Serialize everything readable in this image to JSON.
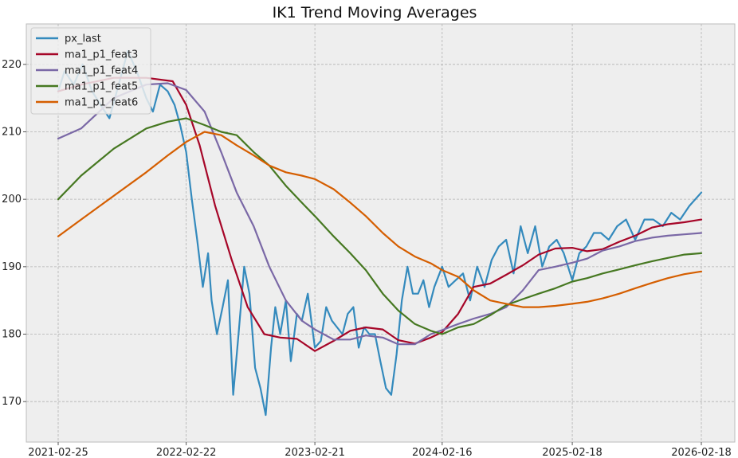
{
  "chart_data": {
    "type": "line",
    "title": "IK1 Trend Moving Averages",
    "xlabel": "",
    "ylabel": "",
    "x_ticks": [
      "2021-02-25",
      "2022-02-22",
      "2023-02-21",
      "2024-02-16",
      "2025-02-18",
      "2026-02-18"
    ],
    "x_range": [
      "2021-02-25",
      "2026-02-18"
    ],
    "y_ticks": [
      170,
      180,
      190,
      200,
      210,
      220
    ],
    "ylim": [
      164,
      226
    ],
    "grid": true,
    "legend_position": "top-left",
    "series": [
      {
        "name": "px_last",
        "color": "#348ABD",
        "x": [
          "2021-02-25",
          "2021-03-15",
          "2021-04-10",
          "2021-05-05",
          "2021-06-01",
          "2021-06-25",
          "2021-07-20",
          "2021-08-15",
          "2021-09-10",
          "2021-10-05",
          "2021-11-01",
          "2021-11-20",
          "2021-12-10",
          "2022-01-01",
          "2022-01-20",
          "2022-02-05",
          "2022-02-22",
          "2022-03-10",
          "2022-03-25",
          "2022-04-10",
          "2022-04-25",
          "2022-05-05",
          "2022-05-20",
          "2022-06-05",
          "2022-06-20",
          "2022-07-05",
          "2022-07-20",
          "2022-08-05",
          "2022-08-20",
          "2022-09-05",
          "2022-09-20",
          "2022-10-05",
          "2022-10-20",
          "2022-11-01",
          "2022-11-15",
          "2022-12-01",
          "2022-12-15",
          "2023-01-01",
          "2023-01-15",
          "2023-02-01",
          "2023-02-21",
          "2023-03-10",
          "2023-03-25",
          "2023-04-10",
          "2023-04-25",
          "2023-05-10",
          "2023-05-25",
          "2023-06-10",
          "2023-06-25",
          "2023-07-10",
          "2023-07-25",
          "2023-08-10",
          "2023-08-25",
          "2023-09-10",
          "2023-09-25",
          "2023-10-10",
          "2023-10-25",
          "2023-11-10",
          "2023-11-25",
          "2023-12-10",
          "2023-12-25",
          "2024-01-10",
          "2024-01-25",
          "2024-02-16",
          "2024-03-05",
          "2024-03-25",
          "2024-04-15",
          "2024-05-05",
          "2024-05-25",
          "2024-06-15",
          "2024-07-05",
          "2024-07-25",
          "2024-08-15",
          "2024-09-05",
          "2024-09-25",
          "2024-10-15",
          "2024-11-05",
          "2024-11-25",
          "2024-12-15",
          "2025-01-05",
          "2025-01-25",
          "2025-02-18",
          "2025-03-10",
          "2025-03-30",
          "2025-04-20",
          "2025-05-10",
          "2025-06-01",
          "2025-06-25",
          "2025-07-20",
          "2025-08-15",
          "2025-09-10",
          "2025-10-05",
          "2025-11-01",
          "2025-11-25",
          "2025-12-20",
          "2026-01-15",
          "2026-02-18"
        ],
        "y": [
          216,
          219,
          217,
          220,
          216,
          214,
          212,
          217,
          222,
          219,
          215,
          213,
          217,
          216,
          214,
          211,
          207,
          200,
          194,
          187,
          192,
          185,
          180,
          184,
          188,
          171,
          180,
          190,
          186,
          175,
          172,
          168,
          178,
          184,
          180,
          185,
          176,
          183,
          182,
          186,
          178,
          179,
          184,
          182,
          181,
          180,
          183,
          184,
          178,
          181,
          180,
          180,
          176,
          172,
          171,
          177,
          185,
          190,
          186,
          186,
          188,
          184,
          187,
          190,
          187,
          188,
          189,
          185,
          190,
          187,
          191,
          193,
          194,
          189,
          196,
          192,
          196,
          190,
          193,
          194,
          192,
          188,
          192,
          193,
          195,
          195,
          194,
          196,
          197,
          194,
          197,
          197,
          196,
          198,
          197,
          199,
          201
        ]
      },
      {
        "name": "ma1_p1_feat3",
        "color": "#A60628",
        "x": [
          "2021-02-25",
          "2021-05-01",
          "2021-08-01",
          "2021-11-01",
          "2022-01-15",
          "2022-02-22",
          "2022-04-01",
          "2022-05-15",
          "2022-07-01",
          "2022-08-15",
          "2022-10-01",
          "2022-11-15",
          "2023-01-01",
          "2023-02-21",
          "2023-04-15",
          "2023-06-01",
          "2023-07-15",
          "2023-09-01",
          "2023-10-15",
          "2023-12-01",
          "2024-01-15",
          "2024-02-16",
          "2024-04-01",
          "2024-05-15",
          "2024-07-01",
          "2024-08-15",
          "2024-10-01",
          "2024-11-15",
          "2025-01-01",
          "2025-02-18",
          "2025-04-01",
          "2025-05-15",
          "2025-07-01",
          "2025-08-15",
          "2025-10-01",
          "2025-11-15",
          "2026-01-01",
          "2026-02-18"
        ],
        "y": [
          216,
          217,
          218,
          218,
          217.5,
          214,
          208,
          199,
          191,
          184,
          180,
          179.5,
          179.3,
          177.5,
          179,
          180.5,
          181,
          180.7,
          179.1,
          178.6,
          179.5,
          180.3,
          183,
          187,
          187.5,
          188.8,
          190.2,
          191.8,
          192.7,
          192.8,
          192.3,
          192.6,
          193.7,
          194.6,
          195.8,
          196.3,
          196.6,
          197
        ]
      },
      {
        "name": "ma1_p1_feat4",
        "color": "#7A68A6",
        "x": [
          "2021-02-25",
          "2021-05-01",
          "2021-08-01",
          "2021-11-01",
          "2022-01-01",
          "2022-02-22",
          "2022-04-15",
          "2022-06-01",
          "2022-07-15",
          "2022-09-01",
          "2022-10-15",
          "2022-12-01",
          "2023-01-15",
          "2023-02-21",
          "2023-04-15",
          "2023-06-01",
          "2023-07-15",
          "2023-09-01",
          "2023-10-15",
          "2023-12-01",
          "2024-01-15",
          "2024-02-16",
          "2024-04-01",
          "2024-05-15",
          "2024-07-01",
          "2024-08-15",
          "2024-10-01",
          "2024-11-15",
          "2025-01-01",
          "2025-02-18",
          "2025-04-01",
          "2025-05-15",
          "2025-07-01",
          "2025-08-15",
          "2025-10-01",
          "2025-11-15",
          "2026-01-01",
          "2026-02-18"
        ],
        "y": [
          209,
          210.5,
          215,
          217,
          217.2,
          216.2,
          213,
          207,
          201,
          196,
          190,
          185,
          182,
          180.7,
          179.2,
          179.2,
          179.8,
          179.5,
          178.5,
          178.5,
          180,
          180.6,
          181.5,
          182.3,
          183,
          184,
          186.5,
          189.5,
          190,
          190.6,
          191.2,
          192.4,
          193,
          193.8,
          194.3,
          194.6,
          194.8,
          195
        ]
      },
      {
        "name": "ma1_p1_feat5",
        "color": "#467821",
        "x": [
          "2021-02-25",
          "2021-05-01",
          "2021-08-01",
          "2021-11-01",
          "2022-01-01",
          "2022-02-22",
          "2022-04-15",
          "2022-06-01",
          "2022-07-15",
          "2022-09-01",
          "2022-10-15",
          "2022-12-01",
          "2023-01-15",
          "2023-02-21",
          "2023-04-15",
          "2023-06-01",
          "2023-07-15",
          "2023-09-01",
          "2023-10-15",
          "2023-12-01",
          "2024-01-15",
          "2024-02-16",
          "2024-04-01",
          "2024-05-15",
          "2024-07-01",
          "2024-08-15",
          "2024-10-01",
          "2024-11-15",
          "2025-01-01",
          "2025-02-18",
          "2025-04-01",
          "2025-05-15",
          "2025-07-01",
          "2025-08-15",
          "2025-10-01",
          "2025-11-15",
          "2026-01-01",
          "2026-02-18"
        ],
        "y": [
          200,
          203.5,
          207.5,
          210.5,
          211.5,
          212,
          211,
          210,
          209.5,
          207,
          205,
          202,
          199.5,
          197.5,
          194.5,
          192,
          189.5,
          186,
          183.5,
          181.5,
          180.5,
          180,
          181,
          181.5,
          182.8,
          184.3,
          185.2,
          186,
          186.8,
          187.8,
          188.3,
          189,
          189.6,
          190.2,
          190.8,
          191.3,
          191.8,
          192
        ]
      },
      {
        "name": "ma1_p1_feat6",
        "color": "#D55E00",
        "x": [
          "2021-02-25",
          "2021-05-01",
          "2021-08-01",
          "2021-11-01",
          "2022-01-01",
          "2022-02-22",
          "2022-04-15",
          "2022-06-01",
          "2022-07-15",
          "2022-09-01",
          "2022-10-15",
          "2022-12-01",
          "2023-01-15",
          "2023-02-21",
          "2023-04-15",
          "2023-06-01",
          "2023-07-15",
          "2023-09-01",
          "2023-10-15",
          "2023-12-01",
          "2024-01-15",
          "2024-02-16",
          "2024-04-01",
          "2024-05-15",
          "2024-07-01",
          "2024-08-15",
          "2024-10-01",
          "2024-11-15",
          "2025-01-01",
          "2025-02-18",
          "2025-04-01",
          "2025-05-15",
          "2025-07-01",
          "2025-08-15",
          "2025-10-01",
          "2025-11-15",
          "2026-01-01",
          "2026-02-18"
        ],
        "y": [
          194.5,
          197,
          200.5,
          204,
          206.5,
          208.5,
          210,
          209.5,
          208,
          206.5,
          205,
          204,
          203.5,
          203,
          201.5,
          199.5,
          197.5,
          195,
          193,
          191.5,
          190.5,
          189.5,
          188.5,
          186.5,
          185,
          184.5,
          184,
          184,
          184.2,
          184.5,
          184.8,
          185.3,
          186,
          186.8,
          187.6,
          188.3,
          188.9,
          189.3
        ]
      }
    ]
  }
}
